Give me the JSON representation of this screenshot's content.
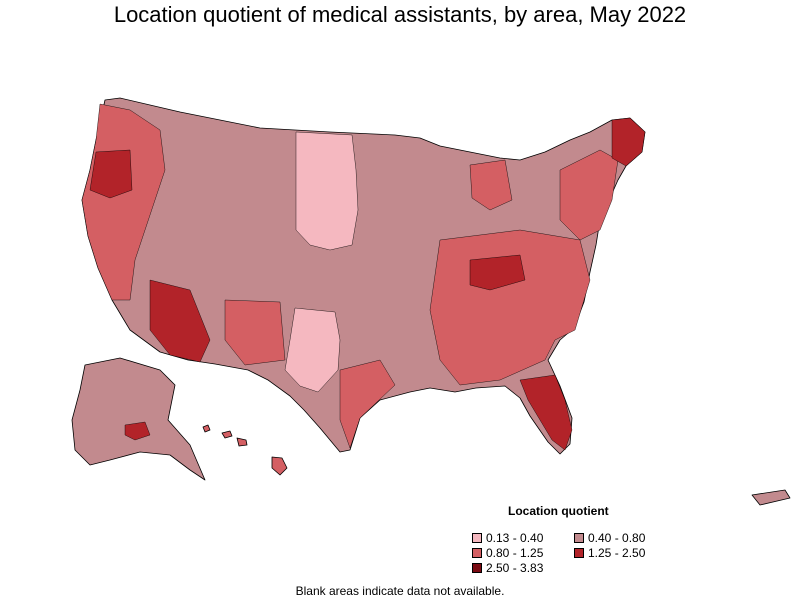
{
  "title": "Location quotient of medical assistants, by area, May 2022",
  "legend": {
    "title": "Location quotient",
    "items": [
      {
        "label": "0.13 - 0.40",
        "color": "#f5b8c0"
      },
      {
        "label": "0.40 - 0.80",
        "color": "#c28a8e"
      },
      {
        "label": "0.80 - 1.25",
        "color": "#d45f63"
      },
      {
        "label": "1.25 - 2.50",
        "color": "#b22329"
      },
      {
        "label": "2.50 - 3.83",
        "color": "#7a0a12"
      }
    ]
  },
  "footnote": "Blank areas indicate data not available."
}
